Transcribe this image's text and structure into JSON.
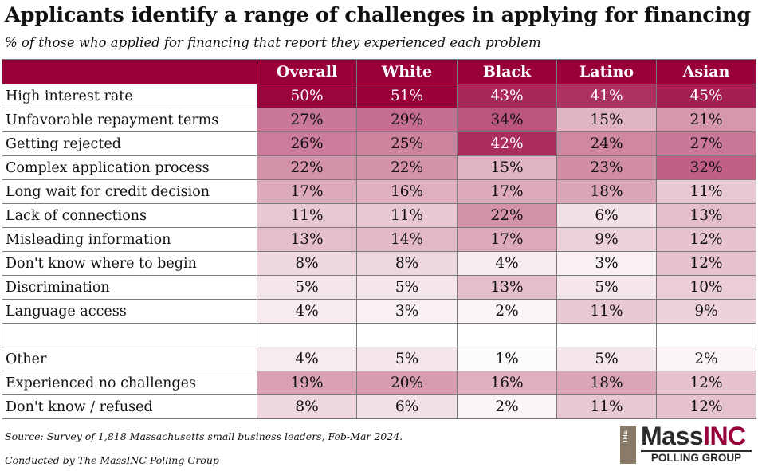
{
  "chart_data": {
    "type": "table",
    "title": "Applicants identify a range of challenges in applying for financing",
    "subtitle": "% of those who applied for financing that report they experienced each problem",
    "columns": [
      "Overall",
      "White",
      "Black",
      "Latino",
      "Asian"
    ],
    "rows": [
      {
        "label": "High interest rate",
        "values": [
          "50%",
          "51%",
          "43%",
          "41%",
          "45%"
        ]
      },
      {
        "label": "Unfavorable repayment terms",
        "values": [
          "27%",
          "29%",
          "34%",
          "15%",
          "21%"
        ]
      },
      {
        "label": "Getting rejected",
        "values": [
          "26%",
          "25%",
          "42%",
          "24%",
          "27%"
        ]
      },
      {
        "label": "Complex application process",
        "values": [
          "22%",
          "22%",
          "15%",
          "23%",
          "32%"
        ]
      },
      {
        "label": "Long wait for credit decision",
        "values": [
          "17%",
          "16%",
          "17%",
          "18%",
          "11%"
        ]
      },
      {
        "label": "Lack of connections",
        "values": [
          "11%",
          "11%",
          "22%",
          "6%",
          "13%"
        ]
      },
      {
        "label": "Misleading information",
        "values": [
          "13%",
          "14%",
          "17%",
          "9%",
          "12%"
        ]
      },
      {
        "label": "Don't know where to begin",
        "values": [
          "8%",
          "8%",
          "4%",
          "3%",
          "12%"
        ]
      },
      {
        "label": "Discrimination",
        "values": [
          "5%",
          "5%",
          "13%",
          "5%",
          "10%"
        ]
      },
      {
        "label": "Language access",
        "values": [
          "4%",
          "3%",
          "2%",
          "11%",
          "9%"
        ]
      },
      {
        "label": "",
        "values": [
          "",
          "",
          "",
          "",
          ""
        ]
      },
      {
        "label": "Other",
        "values": [
          "4%",
          "5%",
          "1%",
          "5%",
          "2%"
        ]
      },
      {
        "label": "Experienced no challenges",
        "values": [
          "19%",
          "20%",
          "16%",
          "18%",
          "12%"
        ]
      },
      {
        "label": "Don't know / refused",
        "values": [
          "8%",
          "6%",
          "2%",
          "11%",
          "12%"
        ]
      }
    ],
    "color_scale": {
      "low": "#ffffff",
      "high": "#99003a",
      "min": 0,
      "max": 51
    }
  },
  "footer": {
    "source": "Source: Survey of 1,818 Massachusetts small business leaders, Feb-Mar 2024.",
    "credit": "Conducted by The MassINC Polling Group"
  },
  "logo": {
    "the": "THE",
    "mass": "Mass",
    "inc": "INC",
    "sub": "POLLING GROUP"
  }
}
